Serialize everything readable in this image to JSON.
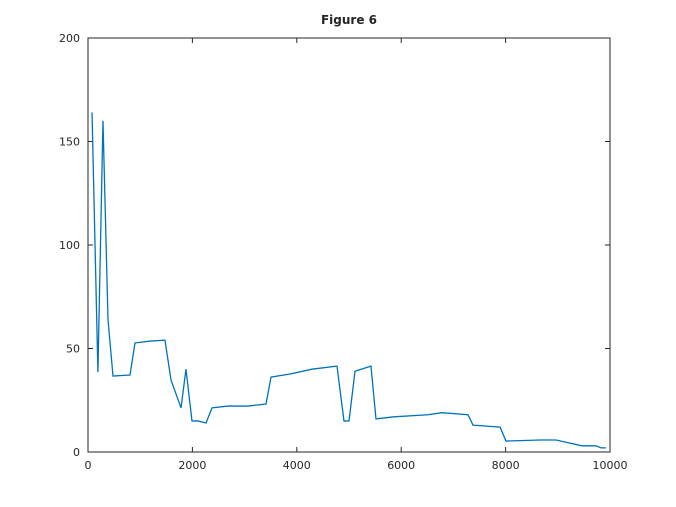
{
  "chart_data": {
    "type": "line",
    "title": "Figure 6",
    "x": [
      77,
      190,
      287,
      306,
      383,
      479,
      805,
      900,
      1034,
      1188,
      1475,
      1590,
      1782,
      1877,
      1992,
      2107,
      2261,
      2375,
      2682,
      3065,
      3410,
      3506,
      3870,
      4291,
      4770,
      4904,
      5000,
      5115,
      5421,
      5517,
      5862,
      6513,
      6782,
      7280,
      7375,
      7893,
      8008,
      8659,
      8966,
      9234,
      9464,
      9732,
      9828,
      9923
    ],
    "series": [
      {
        "color": "#0072bd",
        "values": [
          164,
          38.6,
          160,
          141,
          64,
          36.7,
          37.2,
          52.7,
          53.1,
          53.6,
          54,
          34.8,
          21.3,
          40,
          15,
          15,
          14,
          21.3,
          22.2,
          22.2,
          23.2,
          36.2,
          37.7,
          40,
          41.5,
          15,
          15,
          39,
          41.5,
          16,
          17,
          18,
          19,
          18,
          13,
          12,
          5.3,
          5.8,
          5.8,
          4.3,
          3,
          3,
          2,
          2
        ]
      }
    ],
    "xlim": [
      0,
      10000
    ],
    "xticks": [
      0,
      2000,
      4000,
      6000,
      8000,
      10000
    ],
    "ylim": [
      0,
      200
    ],
    "yticks": [
      0,
      50,
      100,
      150,
      200
    ]
  }
}
